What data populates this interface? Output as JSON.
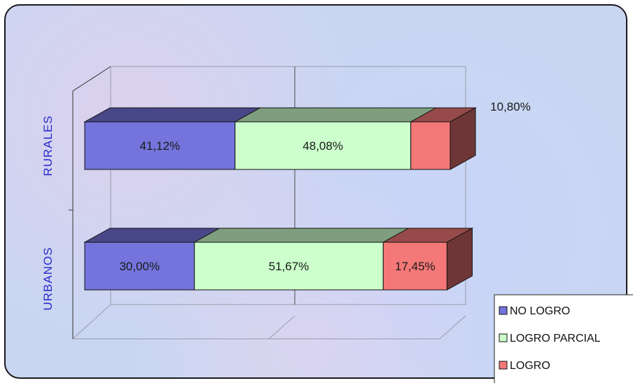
{
  "chart_data": {
    "type": "bar",
    "orientation": "horizontal",
    "stacked": true,
    "style": "3d",
    "categories": [
      "RURALES",
      "URBANOS"
    ],
    "series": [
      {
        "name": "NO LOGRO",
        "color": "#7474dc",
        "values": [
          41.12,
          30.0
        ],
        "labels": [
          "41,12%",
          "30,00%"
        ]
      },
      {
        "name": "LOGRO PARCIAL",
        "color": "#ccffcc",
        "values": [
          48.08,
          51.67
        ],
        "labels": [
          "48,08%",
          "51,67%"
        ]
      },
      {
        "name": "LOGRO",
        "color": "#f47878",
        "values": [
          10.8,
          17.45
        ],
        "labels": [
          "10,80%",
          "17,45%"
        ]
      }
    ],
    "xlim": [
      0,
      100
    ],
    "grid": true,
    "legend_position": "bottom-right"
  }
}
